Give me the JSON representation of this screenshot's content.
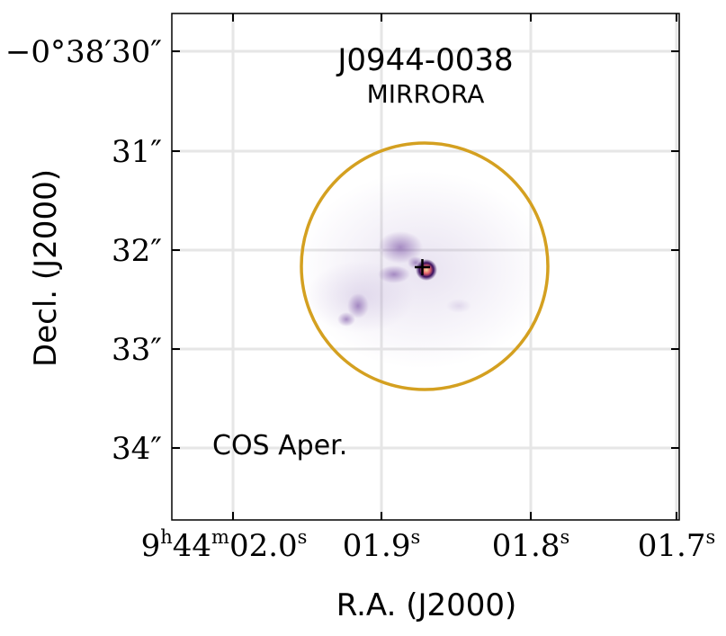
{
  "chart_data": {
    "type": "heatmap",
    "title": "J0944-0038",
    "subtitle": "MIRRORA",
    "xlabel": "R.A. (J2000)",
    "ylabel": "Decl. (J2000)",
    "x_ticks": [
      {
        "h": "9",
        "m": "44",
        "s": "02.0",
        "label": "9h44m02.0s"
      },
      {
        "s": "01.9",
        "label": "01.9s"
      },
      {
        "s": "01.8",
        "label": "01.8s"
      },
      {
        "s": "01.7",
        "label": "01.7s"
      }
    ],
    "y_ticks": [
      "−0°38′30″",
      "31″",
      "32″",
      "33″",
      "34″"
    ],
    "grid": true,
    "colormap": "magma_r",
    "annotation": {
      "text": "COS Aper.",
      "color": "#D4A020"
    },
    "aperture": {
      "shape": "circle",
      "color": "#D4A020",
      "center_ra_s": 1.871,
      "center_dec_arcsec": 32.17,
      "diameter_arcsec": 2.5
    },
    "marker": {
      "shape": "plus",
      "color": "#000000",
      "ra_s": 1.873,
      "dec_arcsec": 32.18
    }
  }
}
